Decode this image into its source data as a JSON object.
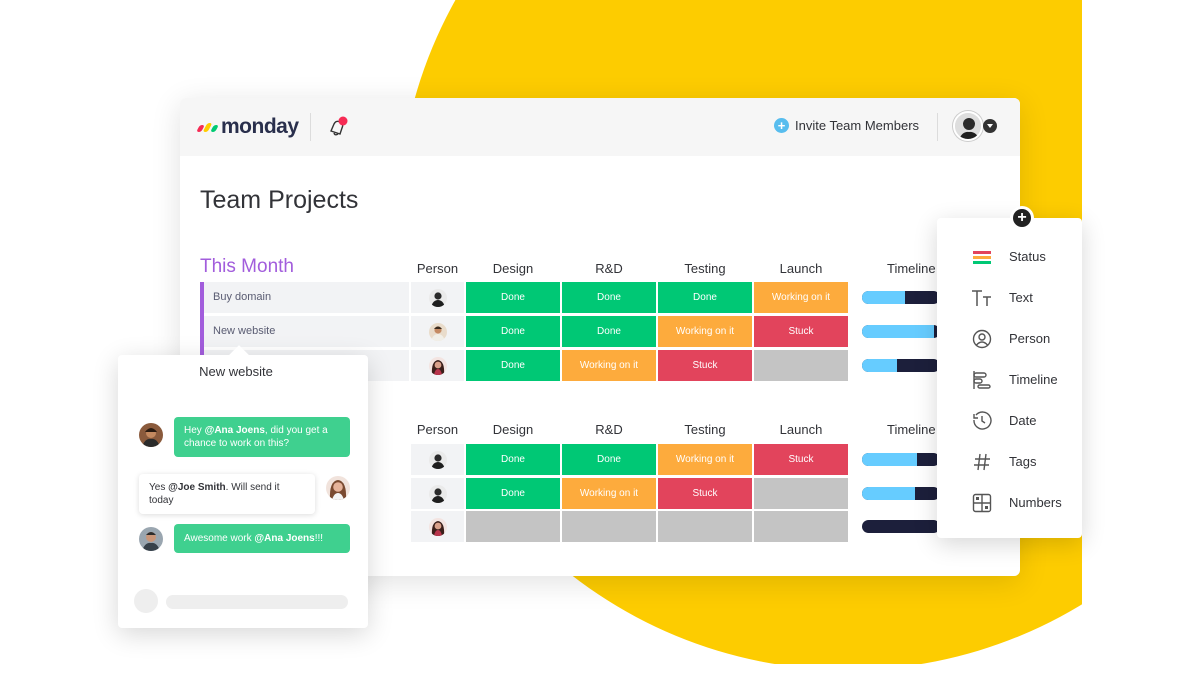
{
  "app": {
    "logo_text": "monday"
  },
  "header": {
    "invite_label": "Invite Team Members"
  },
  "page": {
    "title": "Team Projects"
  },
  "columns": {
    "person": "Person",
    "design": "Design",
    "rnd": "R&D",
    "testing": "Testing",
    "launch": "Launch",
    "timeline": "Timeline"
  },
  "group1": {
    "title": "This Month",
    "rows": [
      {
        "name": "Buy domain",
        "design": "Done",
        "rnd": "Done",
        "testing": "Done",
        "launch": "Working on it",
        "timeline_progress": 0.55
      },
      {
        "name": "New website",
        "design": "Done",
        "rnd": "Done",
        "testing": "Working on it",
        "launch": "Stuck",
        "timeline_progress": 0.92
      },
      {
        "name": "",
        "design": "Done",
        "rnd": "Working on it",
        "testing": "Stuck",
        "launch": "",
        "timeline_progress": 0.45
      }
    ]
  },
  "group2": {
    "rows": [
      {
        "design": "Done",
        "rnd": "Done",
        "testing": "Working on it",
        "launch": "Stuck",
        "timeline_progress": 0.7
      },
      {
        "design": "Done",
        "rnd": "Working on it",
        "testing": "Stuck",
        "launch": "",
        "timeline_progress": 0.68
      },
      {
        "design": "",
        "rnd": "",
        "testing": "",
        "launch": "",
        "timeline_progress": 0.0
      }
    ]
  },
  "chat": {
    "title": "New website",
    "messages": [
      {
        "pre": "Hey ",
        "mention": "@Ana Joens",
        "post": ", did you get a chance to work on this?"
      },
      {
        "pre": "Yes ",
        "mention": "@Joe Smith",
        "post": ". Will send it today"
      },
      {
        "pre": "Awesome work ",
        "mention": "@Ana Joens",
        "post": "!!!"
      }
    ]
  },
  "column_menu": {
    "items": [
      {
        "label": "Status",
        "icon": "status-icon"
      },
      {
        "label": "Text",
        "icon": "text-icon"
      },
      {
        "label": "Person",
        "icon": "person-icon"
      },
      {
        "label": "Timeline",
        "icon": "timeline-icon"
      },
      {
        "label": "Date",
        "icon": "clock-icon"
      },
      {
        "label": "Tags",
        "icon": "hashtag-icon"
      },
      {
        "label": "Numbers",
        "icon": "numbers-icon"
      }
    ]
  },
  "colors": {
    "done": "#00c875",
    "working": "#fdab3d",
    "stuck": "#e2445c",
    "empty": "#c4c4c4",
    "accent": "#a25ddc",
    "background_circle": "#fdcc00",
    "timeline_fill": "#66ccff",
    "timeline_track": "#1c1f3b"
  }
}
